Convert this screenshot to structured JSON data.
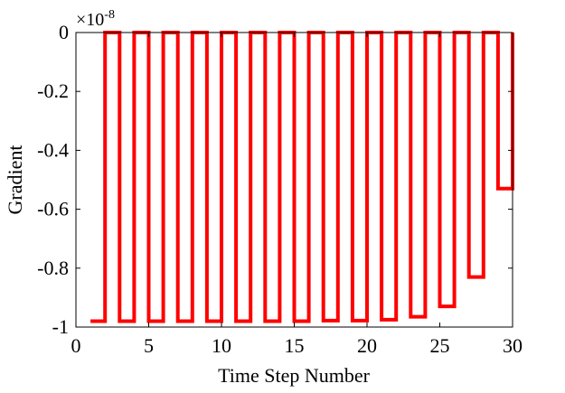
{
  "chart_data": {
    "type": "line",
    "xlabel": "Time Step Number",
    "ylabel": "Gradient",
    "exponent_label": "×10",
    "exponent_power": "-8",
    "xlim": [
      0,
      30
    ],
    "ylim": [
      -1,
      0
    ],
    "x_ticks": [
      "0",
      "5",
      "10",
      "15",
      "20",
      "25",
      "30"
    ],
    "y_ticks": [
      "0",
      "-0.2",
      "-0.4",
      "-0.6",
      "-0.8",
      "-1"
    ],
    "grid": false,
    "series": [
      {
        "color": "#ff0000",
        "step": true,
        "x": [
          1,
          2,
          3,
          4,
          5,
          6,
          7,
          8,
          9,
          10,
          11,
          12,
          13,
          14,
          15,
          16,
          17,
          18,
          19,
          20,
          21,
          22,
          23,
          24,
          25,
          26,
          27,
          28,
          29,
          30
        ],
        "y": [
          -0.98,
          0,
          -0.98,
          0,
          -0.98,
          0,
          -0.98,
          0,
          -0.98,
          0,
          -0.98,
          0,
          -0.98,
          0,
          -0.98,
          0,
          -0.978,
          0,
          -0.978,
          0,
          -0.975,
          0,
          -0.965,
          0,
          -0.93,
          0,
          -0.83,
          0,
          -0.53,
          0
        ]
      }
    ]
  }
}
